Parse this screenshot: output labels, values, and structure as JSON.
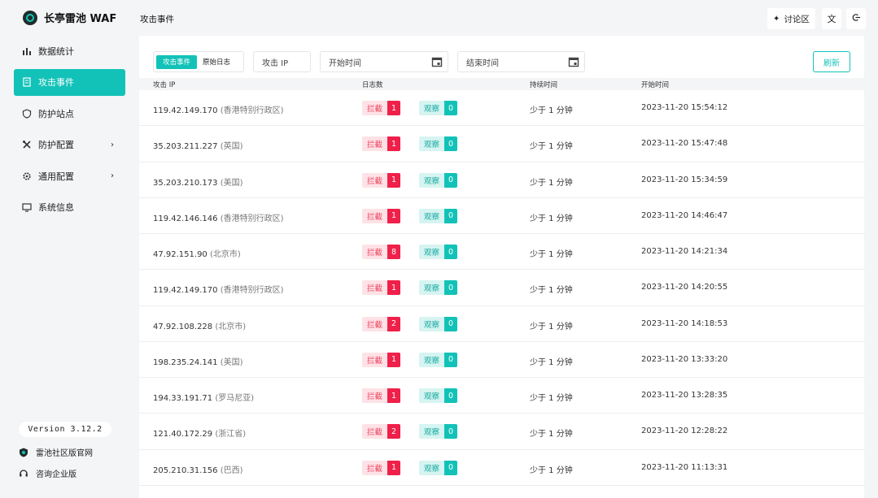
{
  "app": {
    "title": "长亭雷池 WAF"
  },
  "sidebar": {
    "items": [
      {
        "label": "数据统计",
        "icon": "bar-chart-icon"
      },
      {
        "label": "攻击事件",
        "icon": "document-icon",
        "active": true
      },
      {
        "label": "防护站点",
        "icon": "shield-icon"
      },
      {
        "label": "防护配置",
        "icon": "tools-icon",
        "chevron": "›"
      },
      {
        "label": "通用配置",
        "icon": "gear-icon",
        "chevron": "›"
      },
      {
        "label": "系统信息",
        "icon": "monitor-icon"
      }
    ],
    "version": "Version 3.12.2",
    "community": "雷池社区版官网",
    "enterprise": "咨询企业版"
  },
  "header": {
    "page_title": "攻击事件",
    "forum_label": "讨论区"
  },
  "toolbar": {
    "tab_events": "攻击事件",
    "tab_raw_logs": "原始日志",
    "ip_placeholder": "攻击 IP",
    "start_placeholder": "开始时间",
    "end_placeholder": "结束时间",
    "refresh_label": "刷新"
  },
  "table": {
    "columns": [
      "攻击 IP",
      "日志数",
      "持续时间",
      "开始时间"
    ],
    "block_label": "拦截",
    "observe_label": "观察",
    "rows": [
      {
        "ip": "119.42.149.170",
        "loc": "(香港特别行政区)",
        "block": "1",
        "observe": "0",
        "duration": "少于 1 分钟",
        "start": "2023-11-20 15:54:12"
      },
      {
        "ip": "35.203.211.227",
        "loc": "(英国)",
        "block": "1",
        "observe": "0",
        "duration": "少于 1 分钟",
        "start": "2023-11-20 15:47:48"
      },
      {
        "ip": "35.203.210.173",
        "loc": "(美国)",
        "block": "1",
        "observe": "0",
        "duration": "少于 1 分钟",
        "start": "2023-11-20 15:34:59"
      },
      {
        "ip": "119.42.146.146",
        "loc": "(香港特别行政区)",
        "block": "1",
        "observe": "0",
        "duration": "少于 1 分钟",
        "start": "2023-11-20 14:46:47"
      },
      {
        "ip": "47.92.151.90",
        "loc": "(北京市)",
        "block": "8",
        "observe": "0",
        "duration": "少于 1 分钟",
        "start": "2023-11-20 14:21:34"
      },
      {
        "ip": "119.42.149.170",
        "loc": "(香港特别行政区)",
        "block": "1",
        "observe": "0",
        "duration": "少于 1 分钟",
        "start": "2023-11-20 14:20:55"
      },
      {
        "ip": "47.92.108.228",
        "loc": "(北京市)",
        "block": "2",
        "observe": "0",
        "duration": "少于 1 分钟",
        "start": "2023-11-20 14:18:53"
      },
      {
        "ip": "198.235.24.141",
        "loc": "(美国)",
        "block": "1",
        "observe": "0",
        "duration": "少于 1 分钟",
        "start": "2023-11-20 13:33:20"
      },
      {
        "ip": "194.33.191.71",
        "loc": "(罗马尼亚)",
        "block": "1",
        "observe": "0",
        "duration": "少于 1 分钟",
        "start": "2023-11-20 13:28:35"
      },
      {
        "ip": "121.40.172.29",
        "loc": "(浙江省)",
        "block": "2",
        "observe": "0",
        "duration": "少于 1 分钟",
        "start": "2023-11-20 12:28:22"
      },
      {
        "ip": "205.210.31.156",
        "loc": "(巴西)",
        "block": "1",
        "observe": "0",
        "duration": "少于 1 分钟",
        "start": "2023-11-20 11:13:31"
      }
    ]
  },
  "colors": {
    "accent": "#12c2b8",
    "block": "#ef2049"
  }
}
